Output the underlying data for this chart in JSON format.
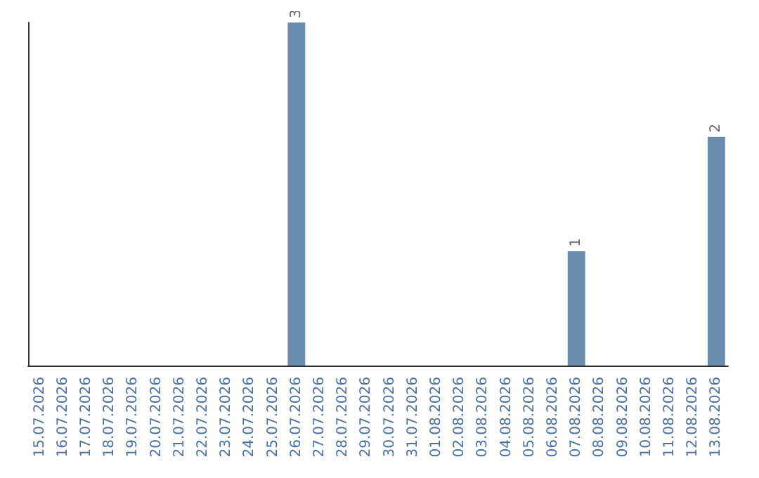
{
  "chart_data": {
    "type": "bar",
    "categories": [
      "15.07.2026",
      "16.07.2026",
      "17.07.2026",
      "18.07.2026",
      "19.07.2026",
      "20.07.2026",
      "21.07.2026",
      "22.07.2026",
      "23.07.2026",
      "24.07.2026",
      "25.07.2026",
      "26.07.2026",
      "27.07.2026",
      "28.07.2026",
      "29.07.2026",
      "30.07.2026",
      "31.07.2026",
      "01.08.2026",
      "02.08.2026",
      "03.08.2026",
      "04.08.2026",
      "05.08.2026",
      "06.08.2026",
      "07.08.2026",
      "08.08.2026",
      "09.08.2026",
      "10.08.2026",
      "11.08.2026",
      "12.08.2026",
      "13.08.2026"
    ],
    "values": [
      0,
      0,
      0,
      0,
      0,
      0,
      0,
      0,
      0,
      0,
      0,
      3,
      0,
      0,
      0,
      0,
      0,
      0,
      0,
      0,
      0,
      0,
      0,
      1,
      0,
      0,
      0,
      0,
      0,
      2
    ],
    "value_labels": [
      null,
      null,
      null,
      null,
      null,
      null,
      null,
      null,
      null,
      null,
      null,
      "3",
      null,
      null,
      null,
      null,
      null,
      null,
      null,
      null,
      null,
      null,
      null,
      "1",
      null,
      null,
      null,
      null,
      null,
      "2"
    ],
    "color": "#6a8caf",
    "ylim": [
      0,
      3
    ],
    "tick_labels": "x",
    "grid": false
  }
}
